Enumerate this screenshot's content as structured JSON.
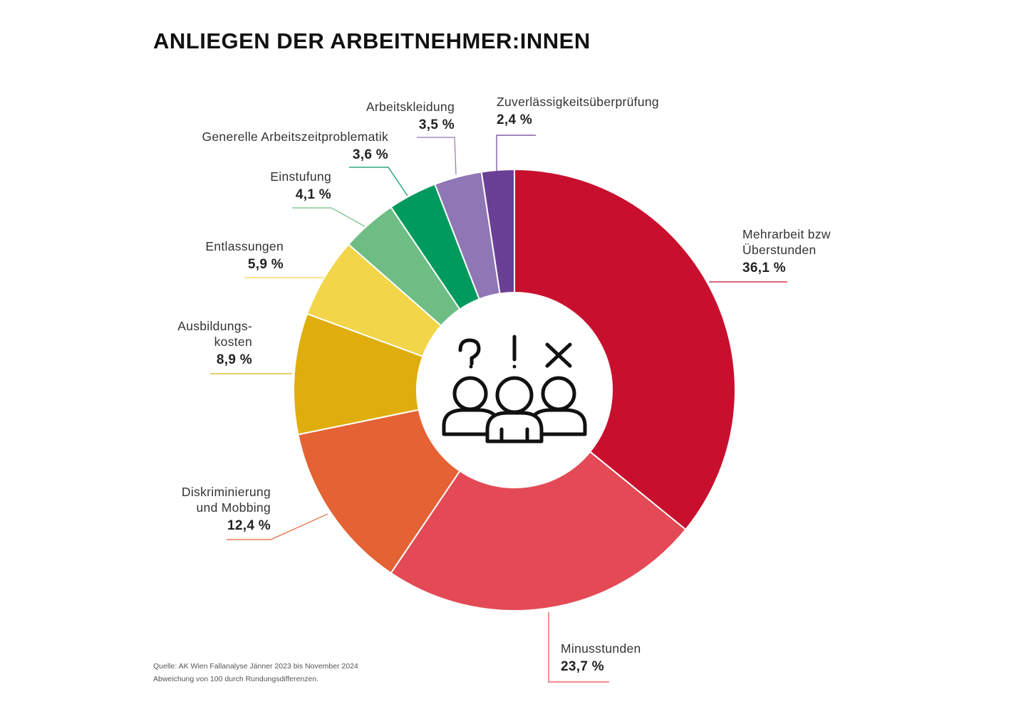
{
  "title": "ANLIEGEN DER ARBEITNEHMER:INNEN",
  "chart_data": {
    "type": "pie",
    "donut": true,
    "title": "ANLIEGEN DER ARBEITNEHMER:INNEN",
    "center_icon": "group-of-people-question-exclamation-cross-icon",
    "slices": [
      {
        "label": "Mehrarbeit bzw Überstunden",
        "lines": [
          "Mehrarbeit bzw",
          "Überstunden"
        ],
        "value": 36.1,
        "value_label": "36,1 %",
        "color": "#c8102e"
      },
      {
        "label": "Minusstunden",
        "lines": [
          "Minusstunden"
        ],
        "value": 23.7,
        "value_label": "23,7 %",
        "color": "#e34a55"
      },
      {
        "label": "Diskriminierung und Mobbing",
        "lines": [
          "Diskriminierung",
          "und Mobbing"
        ],
        "value": 12.4,
        "value_label": "12,4 %",
        "color": "#e56234"
      },
      {
        "label": "Ausbildungskosten",
        "lines": [
          "Ausbildungs-",
          "kosten"
        ],
        "value": 8.9,
        "value_label": "8,9 %",
        "color": "#dfae0d"
      },
      {
        "label": "Entlassungen",
        "lines": [
          "Entlassungen"
        ],
        "value": 5.9,
        "value_label": "5,9 %",
        "color": "#f2d548"
      },
      {
        "label": "Einstufung",
        "lines": [
          "Einstufung"
        ],
        "value": 4.1,
        "value_label": "4,1 %",
        "color": "#6dbd85"
      },
      {
        "label": "Generelle Arbeitszeitproblematik",
        "lines": [
          "Generelle Arbeitszeitproblematik"
        ],
        "value": 3.6,
        "value_label": "3,6 %",
        "color": "#009a5c"
      },
      {
        "label": "Arbeitskleidung",
        "lines": [
          "Arbeitskleidung"
        ],
        "value": 3.5,
        "value_label": "3,5 %",
        "color": "#8f77b5"
      },
      {
        "label": "Zuverlässigkeitsüberprüfung",
        "lines": [
          "Zuverlässigkeitsüberprüfung"
        ],
        "value": 2.4,
        "value_label": "2,4 %",
        "color": "#6a3f96"
      }
    ]
  },
  "footnote": {
    "source": "Quelle: AK Wien Fallanalyse Jänner 2023 bis November 2024",
    "note": "Abweichung von 100 durch Rundungsdifferenzen."
  }
}
